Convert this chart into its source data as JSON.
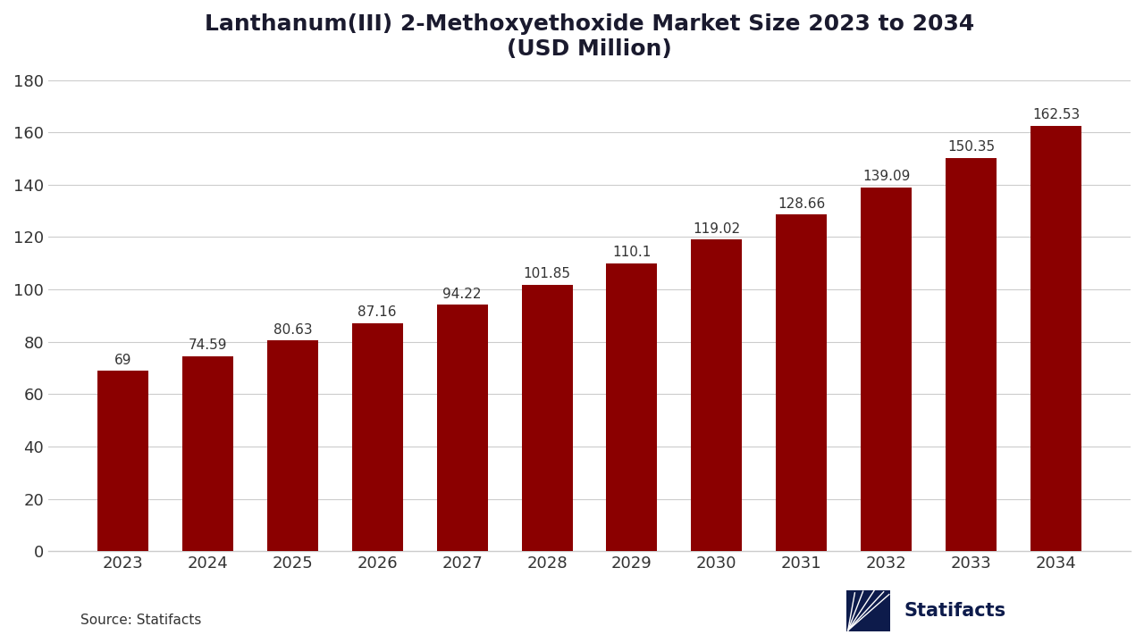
{
  "title_line1": "Lanthanum(III) 2-Methoxyethoxide Market Size 2023 to 2034",
  "title_line2": "(USD Million)",
  "years": [
    2023,
    2024,
    2025,
    2026,
    2027,
    2028,
    2029,
    2030,
    2031,
    2032,
    2033,
    2034
  ],
  "values": [
    69,
    74.59,
    80.63,
    87.16,
    94.22,
    101.85,
    110.1,
    119.02,
    128.66,
    139.09,
    150.35,
    162.53
  ],
  "labels": [
    "69",
    "74.59",
    "80.63",
    "87.16",
    "94.22",
    "101.85",
    "110.1",
    "119.02",
    "128.66",
    "139.09",
    "150.35",
    "162.53"
  ],
  "bar_color": "#8B0000",
  "background_color": "#FFFFFF",
  "title_color": "#1a1a2e",
  "axis_label_color": "#333333",
  "tick_color": "#333333",
  "grid_color": "#cccccc",
  "source_text": "Source: Statifacts",
  "ylim": [
    0,
    180
  ],
  "yticks": [
    0,
    20,
    40,
    60,
    80,
    100,
    120,
    140,
    160,
    180
  ],
  "title_fontsize": 18,
  "label_fontsize": 11,
  "tick_fontsize": 13,
  "source_fontsize": 11,
  "statifacts_color": "#0d1b4b"
}
